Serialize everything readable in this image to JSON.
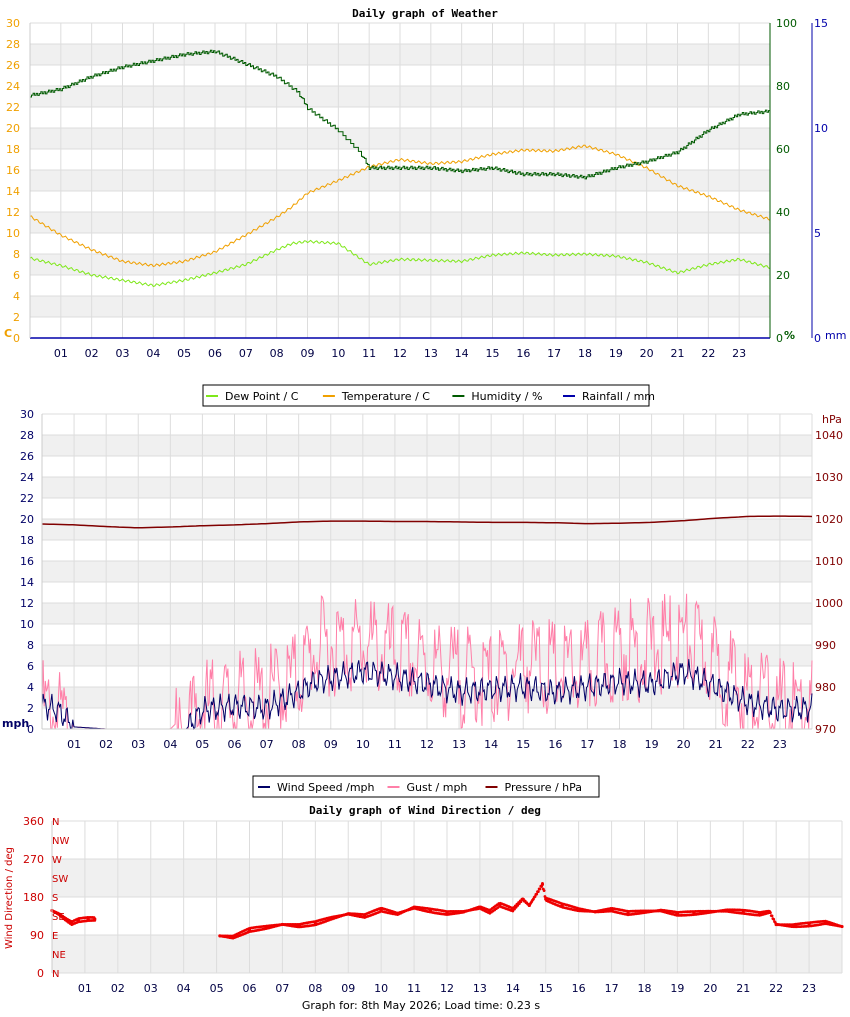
{
  "charts": {
    "weather": {
      "title": "Daily graph of Weather",
      "left_unit": "C",
      "right_unit_humidity": "%",
      "right_unit_rain": "mm",
      "left_ticks": [
        "0",
        "2",
        "4",
        "6",
        "8",
        "10",
        "12",
        "14",
        "16",
        "18",
        "20",
        "22",
        "24",
        "26",
        "28",
        "30"
      ],
      "hum_ticks": [
        "0",
        "20",
        "40",
        "60",
        "80",
        "100"
      ],
      "rain_ticks": [
        "0",
        "5",
        "10",
        "15"
      ],
      "hour_ticks": [
        "01",
        "02",
        "03",
        "04",
        "05",
        "06",
        "07",
        "08",
        "09",
        "10",
        "11",
        "12",
        "13",
        "14",
        "15",
        "16",
        "17",
        "18",
        "19",
        "20",
        "21",
        "22",
        "23"
      ],
      "legend": [
        "Dew Point / C",
        "Temperature / C",
        "Humidity / %",
        "Rainfall / mm"
      ],
      "colors": {
        "dew": "#7fe81a",
        "temp": "#f0a000",
        "hum": "#005a00",
        "rain": "#0000aa",
        "left_axis": "#f0a000"
      }
    },
    "wind": {
      "left_unit": "mph",
      "right_unit": "hPa",
      "left_ticks": [
        "0",
        "2",
        "4",
        "6",
        "8",
        "10",
        "12",
        "14",
        "16",
        "18",
        "20",
        "22",
        "24",
        "26",
        "28",
        "30"
      ],
      "right_ticks": [
        "970",
        "980",
        "990",
        "1000",
        "1010",
        "1020",
        "1030",
        "1040"
      ],
      "hour_ticks": [
        "01",
        "02",
        "03",
        "04",
        "05",
        "06",
        "07",
        "08",
        "09",
        "10",
        "11",
        "12",
        "13",
        "14",
        "15",
        "16",
        "17",
        "18",
        "19",
        "20",
        "21",
        "22",
        "23"
      ],
      "legend": [
        "Wind Speed /mph",
        "Gust / mph",
        "Pressure / hPa"
      ],
      "colors": {
        "speed": "#000066",
        "gust": "#ff7fa8",
        "pressure": "#800000"
      }
    },
    "direction": {
      "title": "Daily graph of Wind Direction / deg",
      "ylabel": "Wind Direction / deg",
      "deg_ticks": [
        "0",
        "90",
        "180",
        "270",
        "360"
      ],
      "compass": [
        "N",
        "NE",
        "E",
        "SE",
        "S",
        "SW",
        "W",
        "NW",
        "N"
      ],
      "hour_ticks": [
        "01",
        "02",
        "03",
        "04",
        "05",
        "06",
        "07",
        "08",
        "09",
        "10",
        "11",
        "12",
        "13",
        "14",
        "15",
        "16",
        "17",
        "18",
        "19",
        "20",
        "21",
        "22",
        "23"
      ],
      "colors": {
        "points": "#ee0000",
        "axis": "#cc0000"
      }
    }
  },
  "chart_data": [
    {
      "type": "line",
      "title": "Daily graph of Weather",
      "x_range_hours": [
        0,
        24
      ],
      "ylim_left": [
        0,
        30
      ],
      "ylim_humidity": [
        0,
        100
      ],
      "ylim_rain": [
        0,
        15
      ],
      "series": [
        {
          "name": "Temperature / C",
          "axis": "left",
          "points": [
            [
              0,
              11.6
            ],
            [
              1,
              9.8
            ],
            [
              2,
              8.4
            ],
            [
              3,
              7.3
            ],
            [
              4,
              6.9
            ],
            [
              5,
              7.3
            ],
            [
              6,
              8.2
            ],
            [
              7,
              9.8
            ],
            [
              8,
              11.5
            ],
            [
              8.5,
              12.5
            ],
            [
              9,
              13.8
            ],
            [
              10,
              15.0
            ],
            [
              11,
              16.3
            ],
            [
              12,
              17.0
            ],
            [
              13,
              16.6
            ],
            [
              14,
              16.8
            ],
            [
              15,
              17.5
            ],
            [
              16,
              17.9
            ],
            [
              17,
              17.8
            ],
            [
              18,
              18.3
            ],
            [
              19,
              17.5
            ],
            [
              20,
              16.2
            ],
            [
              21,
              14.5
            ],
            [
              22,
              13.5
            ],
            [
              23,
              12.2
            ],
            [
              24,
              11.3
            ]
          ]
        },
        {
          "name": "Dew Point / C",
          "axis": "left",
          "points": [
            [
              0,
              7.6
            ],
            [
              1,
              6.9
            ],
            [
              2,
              6.0
            ],
            [
              3,
              5.5
            ],
            [
              4,
              5.0
            ],
            [
              5,
              5.5
            ],
            [
              6,
              6.2
            ],
            [
              7,
              7.0
            ],
            [
              8,
              8.4
            ],
            [
              8.5,
              9.0
            ],
            [
              9,
              9.2
            ],
            [
              10,
              9.0
            ],
            [
              11,
              7.0
            ],
            [
              12,
              7.5
            ],
            [
              13,
              7.4
            ],
            [
              14,
              7.3
            ],
            [
              15,
              7.9
            ],
            [
              16,
              8.1
            ],
            [
              17,
              7.9
            ],
            [
              18,
              8.0
            ],
            [
              19,
              7.8
            ],
            [
              20,
              7.2
            ],
            [
              21,
              6.2
            ],
            [
              22,
              7.0
            ],
            [
              23,
              7.5
            ],
            [
              24,
              6.7
            ]
          ]
        },
        {
          "name": "Humidity / %",
          "axis": "humidity",
          "points": [
            [
              0,
              77
            ],
            [
              1,
              79
            ],
            [
              2,
              83
            ],
            [
              3,
              86
            ],
            [
              4,
              88
            ],
            [
              5,
              90
            ],
            [
              6,
              91
            ],
            [
              7,
              87
            ],
            [
              8,
              83
            ],
            [
              8.7,
              78
            ],
            [
              9,
              73
            ],
            [
              10,
              66
            ],
            [
              10.7,
              59
            ],
            [
              11,
              54
            ],
            [
              12,
              54
            ],
            [
              13,
              54
            ],
            [
              14,
              53
            ],
            [
              15,
              54
            ],
            [
              16,
              52
            ],
            [
              17,
              52
            ],
            [
              18,
              51
            ],
            [
              19,
              54
            ],
            [
              20,
              56
            ],
            [
              21,
              59
            ],
            [
              22,
              66
            ],
            [
              23,
              71
            ],
            [
              24,
              72
            ]
          ]
        },
        {
          "name": "Rainfall / mm",
          "axis": "rain",
          "points": [
            [
              0,
              0
            ],
            [
              24,
              0
            ]
          ]
        }
      ]
    },
    {
      "type": "line",
      "title": "",
      "x_range_hours": [
        0,
        24
      ],
      "ylim_left": [
        0,
        30
      ],
      "ylim_right": [
        970,
        1045
      ],
      "series": [
        {
          "name": "Wind Speed /mph",
          "axis": "left",
          "points": [
            [
              0,
              2.3
            ],
            [
              0.5,
              1.8
            ],
            [
              1,
              0.2
            ],
            [
              2,
              0
            ],
            [
              3,
              0
            ],
            [
              4,
              0
            ],
            [
              4.5,
              0
            ],
            [
              5,
              1.8
            ],
            [
              6,
              2.2
            ],
            [
              7,
              2.0
            ],
            [
              8,
              3.5
            ],
            [
              8.5,
              4.5
            ],
            [
              9,
              4.8
            ],
            [
              10,
              5.5
            ],
            [
              11,
              5.0
            ],
            [
              12,
              4.3
            ],
            [
              13,
              3.5
            ],
            [
              14,
              3.8
            ],
            [
              15,
              4.0
            ],
            [
              16,
              3.5
            ],
            [
              17,
              4.0
            ],
            [
              18,
              4.5
            ],
            [
              19,
              4.3
            ],
            [
              20,
              5.5
            ],
            [
              21,
              4.0
            ],
            [
              22,
              2.5
            ],
            [
              23,
              1.8
            ],
            [
              24,
              2.0
            ]
          ]
        },
        {
          "name": "Gust / mph",
          "axis": "left",
          "points": [
            [
              0,
              3.5
            ],
            [
              0.5,
              2.5
            ],
            [
              1,
              0.2
            ],
            [
              2,
              0
            ],
            [
              3,
              0
            ],
            [
              4,
              0
            ],
            [
              4.5,
              1.5
            ],
            [
              5,
              3.5
            ],
            [
              6,
              4.0
            ],
            [
              7,
              4.5
            ],
            [
              8,
              6.5
            ],
            [
              8.5,
              9.0
            ],
            [
              9,
              9.5
            ],
            [
              10,
              9.5
            ],
            [
              11,
              8.5
            ],
            [
              12,
              7.5
            ],
            [
              13,
              6.5
            ],
            [
              14,
              6.0
            ],
            [
              15,
              8.0
            ],
            [
              16,
              7.0
            ],
            [
              17,
              7.0
            ],
            [
              18,
              9.0
            ],
            [
              19,
              9.0
            ],
            [
              20,
              10.0
            ],
            [
              21,
              7.5
            ],
            [
              22,
              4.5
            ],
            [
              23,
              3.5
            ],
            [
              24,
              3.5
            ]
          ]
        },
        {
          "name": "Pressure / hPa",
          "axis": "right",
          "points": [
            [
              0,
              1018.8
            ],
            [
              1,
              1018.6
            ],
            [
              2,
              1018.2
            ],
            [
              3,
              1017.9
            ],
            [
              4,
              1018.1
            ],
            [
              5,
              1018.4
            ],
            [
              6,
              1018.6
            ],
            [
              7,
              1018.9
            ],
            [
              8,
              1019.3
            ],
            [
              9,
              1019.5
            ],
            [
              10,
              1019.5
            ],
            [
              11,
              1019.4
            ],
            [
              12,
              1019.4
            ],
            [
              13,
              1019.3
            ],
            [
              14,
              1019.2
            ],
            [
              15,
              1019.2
            ],
            [
              16,
              1019.1
            ],
            [
              17,
              1018.9
            ],
            [
              18,
              1019.0
            ],
            [
              19,
              1019.2
            ],
            [
              20,
              1019.6
            ],
            [
              21,
              1020.2
            ],
            [
              22,
              1020.6
            ],
            [
              23,
              1020.7
            ],
            [
              24,
              1020.6
            ]
          ]
        }
      ]
    },
    {
      "type": "scatter",
      "title": "Daily graph of Wind Direction / deg",
      "ylabel": "Wind Direction / deg",
      "x_range_hours": [
        0,
        24
      ],
      "ylim": [
        0,
        360
      ],
      "series": [
        {
          "name": "Wind Direction / deg",
          "points": [
            [
              0,
              148
            ],
            [
              0.2,
              140
            ],
            [
              0.4,
              128
            ],
            [
              0.6,
              118
            ],
            [
              0.8,
              125
            ],
            [
              1.1,
              128
            ],
            [
              1.3,
              128
            ],
            [
              5.1,
              88
            ],
            [
              5.5,
              85
            ],
            [
              6,
              102
            ],
            [
              6.5,
              108
            ],
            [
              7,
              115
            ],
            [
              7.5,
              112
            ],
            [
              8,
              118
            ],
            [
              8.5,
              130
            ],
            [
              9,
              140
            ],
            [
              9.5,
              135
            ],
            [
              10,
              150
            ],
            [
              10.5,
              140
            ],
            [
              11,
              155
            ],
            [
              11.5,
              148
            ],
            [
              12,
              142
            ],
            [
              12.5,
              145
            ],
            [
              13,
              155
            ],
            [
              13.3,
              145
            ],
            [
              13.6,
              162
            ],
            [
              14,
              150
            ],
            [
              14.3,
              175
            ],
            [
              14.5,
              160
            ],
            [
              14.9,
              210
            ],
            [
              15,
              175
            ],
            [
              15.5,
              160
            ],
            [
              16,
              150
            ],
            [
              16.5,
              145
            ],
            [
              17,
              150
            ],
            [
              17.5,
              142
            ],
            [
              18,
              145
            ],
            [
              18.5,
              148
            ],
            [
              19,
              140
            ],
            [
              19.5,
              142
            ],
            [
              20,
              145
            ],
            [
              20.5,
              148
            ],
            [
              21,
              145
            ],
            [
              21.5,
              140
            ],
            [
              21.8,
              145
            ],
            [
              22,
              115
            ],
            [
              22.5,
              112
            ],
            [
              23,
              115
            ],
            [
              23.5,
              120
            ],
            [
              24,
              110
            ]
          ]
        }
      ]
    }
  ],
  "footer": {
    "text": "Graph for: 8th May 2026; Load time: 0.23 s"
  }
}
